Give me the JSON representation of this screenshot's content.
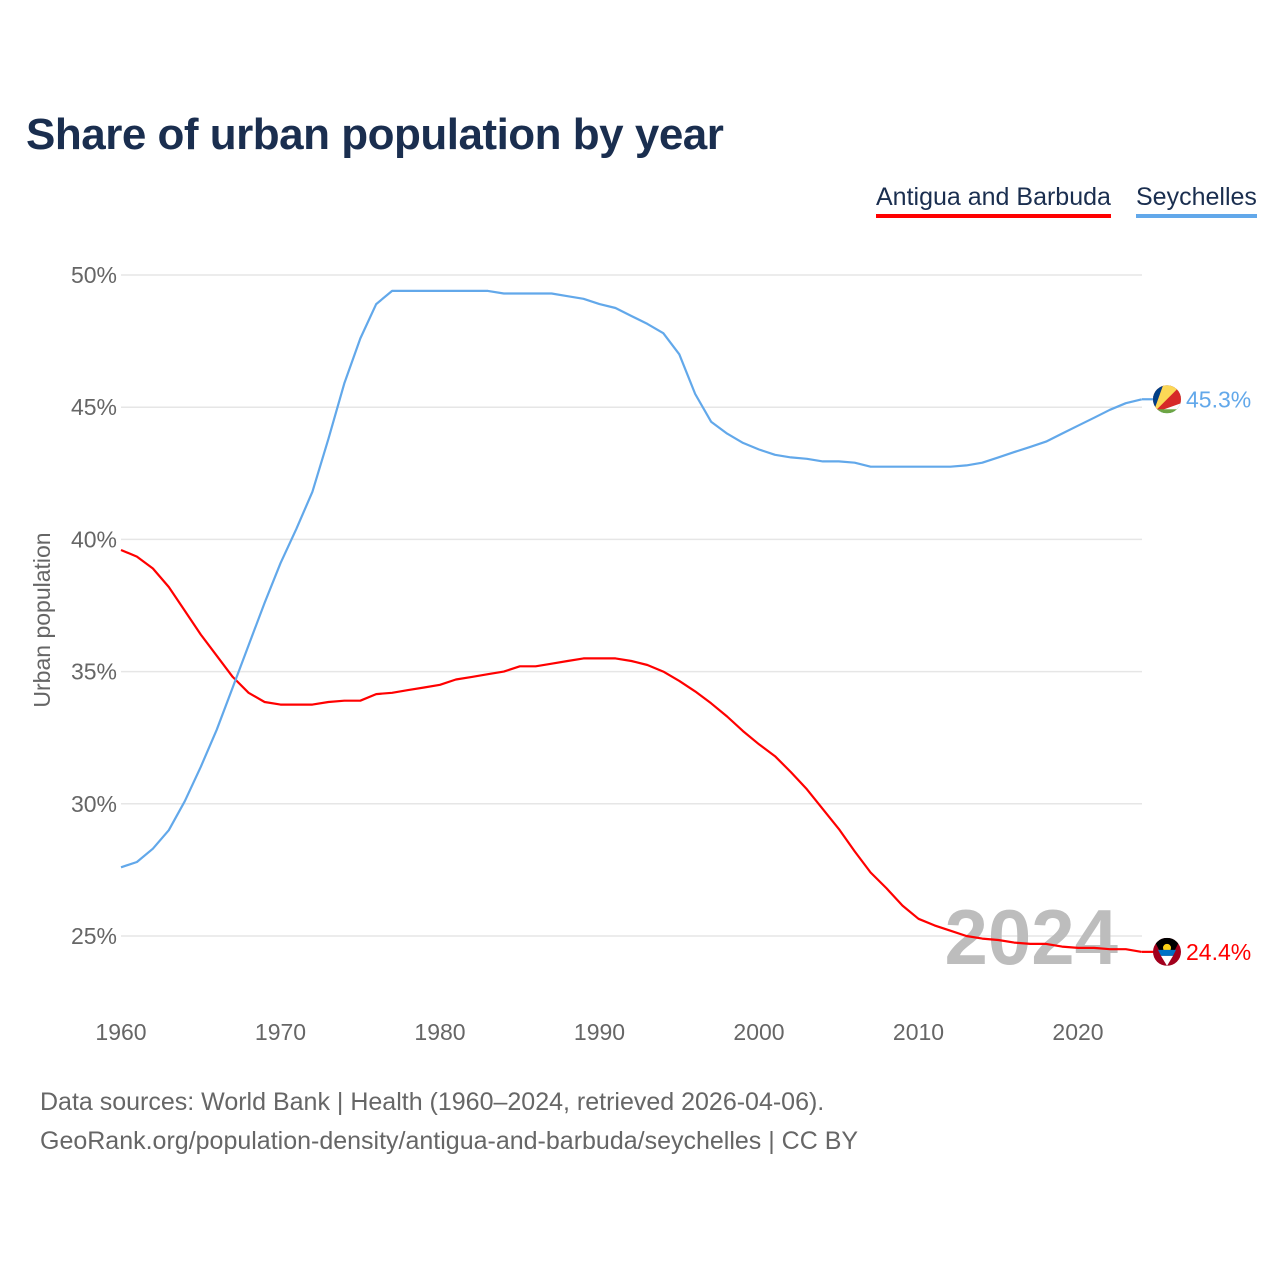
{
  "chart_data": {
    "type": "line",
    "title": "Share of urban population by year",
    "xlabel": "",
    "ylabel": "Urban population",
    "xlim": [
      1960,
      2024
    ],
    "ylim": [
      23,
      50.5
    ],
    "yticks": [
      25,
      30,
      35,
      40,
      45,
      50
    ],
    "ytick_labels": [
      "25%",
      "30%",
      "35%",
      "40%",
      "45%",
      "50%"
    ],
    "xticks": [
      1960,
      1970,
      1980,
      1990,
      2000,
      2010,
      2020
    ],
    "xtick_labels": [
      "1960",
      "1970",
      "1980",
      "1990",
      "2000",
      "2010",
      "2020"
    ],
    "grid": true,
    "legend_position": "top-right",
    "year_watermark": "2024",
    "x_start": 1960,
    "series": [
      {
        "name": "Antigua and Barbuda",
        "color": "#ff0000",
        "end_label": "24.4%",
        "flag": "antigua-and-barbuda-flag",
        "values": [
          39.6,
          39.35,
          38.9,
          38.2,
          37.3,
          36.4,
          35.6,
          34.8,
          34.2,
          33.85,
          33.75,
          33.75,
          33.75,
          33.85,
          33.9,
          33.9,
          34.15,
          34.2,
          34.3,
          34.4,
          34.5,
          34.7,
          34.8,
          34.9,
          35.0,
          35.2,
          35.2,
          35.3,
          35.4,
          35.5,
          35.5,
          35.5,
          35.4,
          35.25,
          35.0,
          34.65,
          34.25,
          33.8,
          33.3,
          32.75,
          32.25,
          31.8,
          31.2,
          30.55,
          29.8,
          29.05,
          28.2,
          27.4,
          26.8,
          26.15,
          25.65,
          25.4,
          25.2,
          25.0,
          24.9,
          24.85,
          24.75,
          24.7,
          24.7,
          24.6,
          24.55,
          24.55,
          24.5,
          24.5,
          24.4
        ]
      },
      {
        "name": "Seychelles",
        "color": "#62a8ea",
        "end_label": "45.3%",
        "flag": "seychelles-flag",
        "values": [
          27.6,
          27.8,
          28.3,
          29.0,
          30.1,
          31.4,
          32.8,
          34.4,
          36.0,
          37.6,
          39.1,
          40.4,
          41.8,
          43.8,
          45.9,
          47.6,
          48.9,
          49.4,
          49.4,
          49.4,
          49.4,
          49.4,
          49.4,
          49.4,
          49.3,
          49.3,
          49.3,
          49.3,
          49.2,
          49.1,
          48.9,
          48.75,
          48.45,
          48.15,
          47.8,
          47.0,
          45.5,
          44.45,
          44.0,
          43.65,
          43.4,
          43.2,
          43.1,
          43.05,
          42.95,
          42.95,
          42.9,
          42.75,
          42.75,
          42.75,
          42.75,
          42.75,
          42.75,
          42.8,
          42.9,
          43.1,
          43.3,
          43.5,
          43.7,
          44.0,
          44.3,
          44.6,
          44.9,
          45.15,
          45.3
        ]
      }
    ]
  },
  "footer": {
    "line1": "Data sources: World Bank | Health (1960–2024, retrieved 2026-04-06).",
    "line2": "GeoRank.org/population-density/antigua-and-barbuda/seychelles | CC BY"
  }
}
